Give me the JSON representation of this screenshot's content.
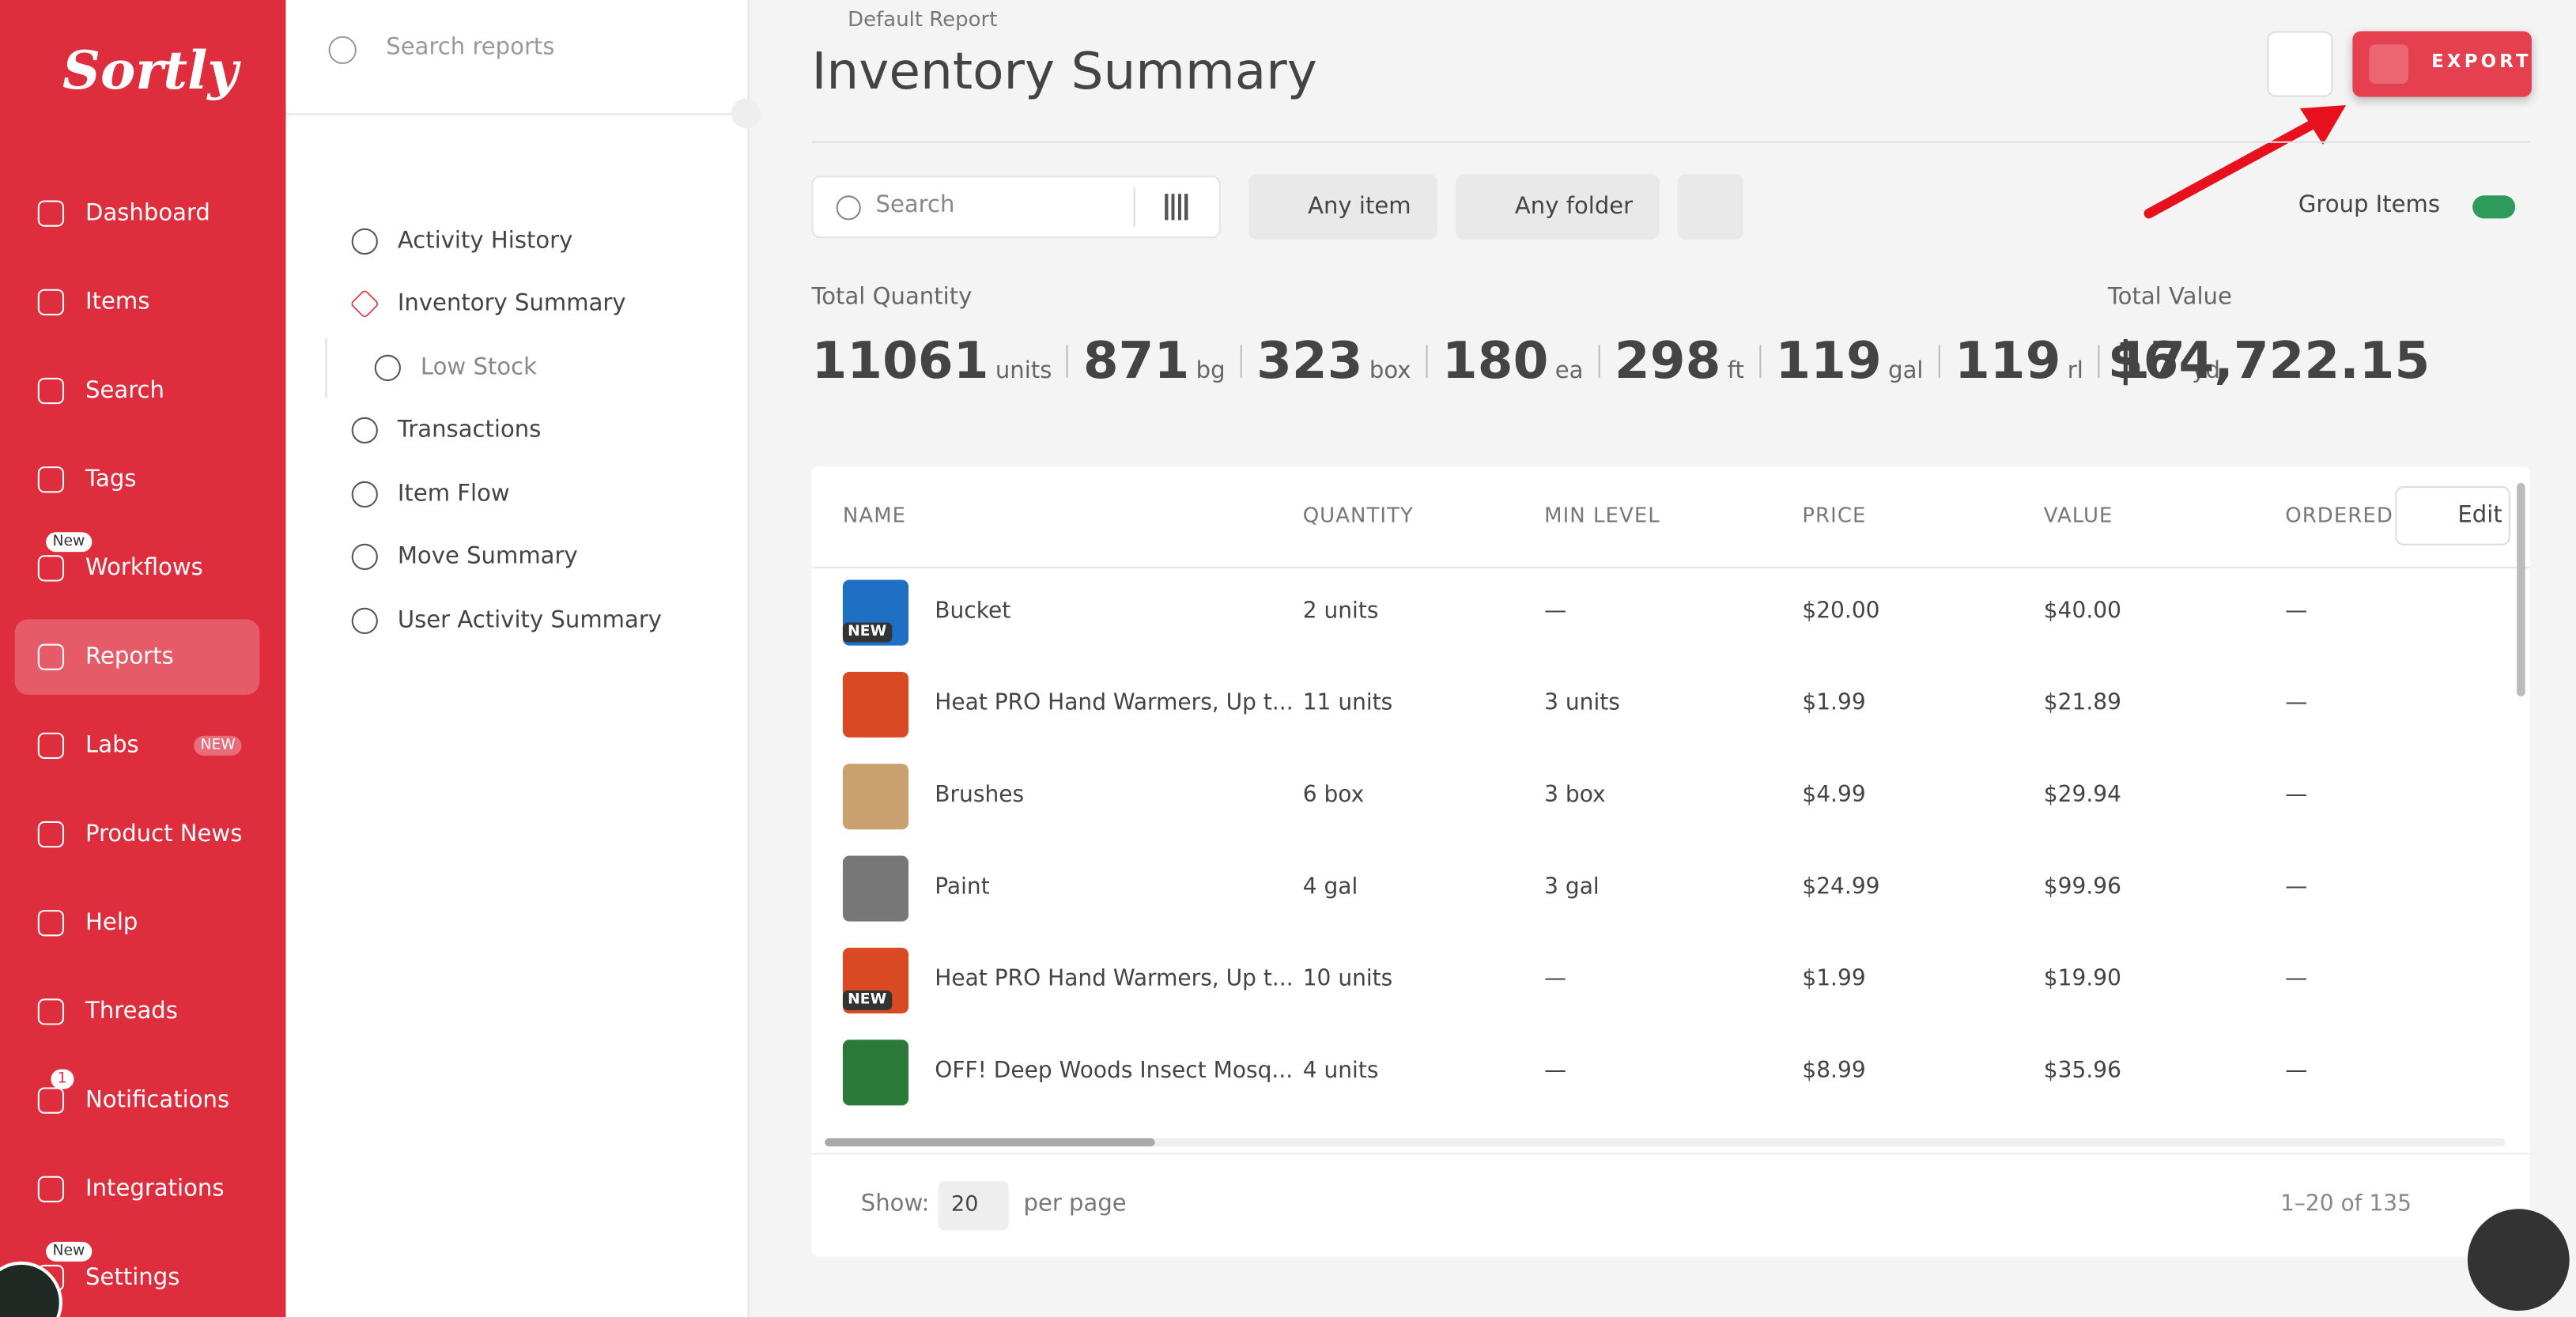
{
  "brand": "Sortly",
  "nav": [
    {
      "label": "Dashboard"
    },
    {
      "label": "Items"
    },
    {
      "label": "Search"
    },
    {
      "label": "Tags"
    },
    {
      "label": "Workflows",
      "badge": "New"
    },
    {
      "label": "Reports"
    },
    {
      "label": "Labs",
      "badge": "NEW"
    },
    {
      "label": "Product News"
    },
    {
      "label": "Help"
    },
    {
      "label": "Threads"
    },
    {
      "label": "Notifications",
      "badge": "1"
    },
    {
      "label": "Integrations"
    },
    {
      "label": "Settings",
      "badge": "New"
    }
  ],
  "report_search": "Search reports",
  "report_menu": [
    "Activity History",
    "Inventory Summary",
    "Low Stock",
    "Transactions",
    "Item Flow",
    "Move Summary",
    "User Activity Summary"
  ],
  "header": {
    "breadcrumb": "Default Report",
    "title": "Inventory Summary",
    "export": "EXPORT"
  },
  "filters": {
    "search": "Search",
    "item": "Any item",
    "folder": "Any folder",
    "group_items": "Group Items"
  },
  "totals": {
    "quantity_label": "Total Quantity",
    "quantities": [
      {
        "value": "11061",
        "unit": "units"
      },
      {
        "value": "871",
        "unit": "bg"
      },
      {
        "value": "323",
        "unit": "box"
      },
      {
        "value": "180",
        "unit": "ea"
      },
      {
        "value": "298",
        "unit": "ft"
      },
      {
        "value": "119",
        "unit": "gal"
      },
      {
        "value": "119",
        "unit": "rl"
      },
      {
        "value": "17",
        "unit": "yd"
      }
    ],
    "value_label": "Total Value",
    "value": "$64,722.15"
  },
  "table": {
    "columns": [
      "NAME",
      "QUANTITY",
      "MIN LEVEL",
      "PRICE",
      "VALUE",
      "ORDERED"
    ],
    "edit": "Edit",
    "rows": [
      {
        "name": "Bucket",
        "quantity": "2 units",
        "min": "—",
        "price": "$20.00",
        "value": "$40.00",
        "ordered": "—",
        "badge": "NEW"
      },
      {
        "name": "Heat PRO Hand Warmers, Up t...",
        "quantity": "11 units",
        "min": "3 units",
        "price": "$1.99",
        "value": "$21.89",
        "ordered": "—"
      },
      {
        "name": "Brushes",
        "quantity": "6 box",
        "min": "3 box",
        "price": "$4.99",
        "value": "$29.94",
        "ordered": "—"
      },
      {
        "name": "Paint",
        "quantity": "4 gal",
        "min": "3 gal",
        "price": "$24.99",
        "value": "$99.96",
        "ordered": "—"
      },
      {
        "name": "Heat PRO Hand Warmers, Up t...",
        "quantity": "10 units",
        "min": "—",
        "price": "$1.99",
        "value": "$19.90",
        "ordered": "—",
        "badge": "NEW"
      },
      {
        "name": "OFF! Deep Woods Insect Mosq...",
        "quantity": "4 units",
        "min": "—",
        "price": "$8.99",
        "value": "$35.96",
        "ordered": "—"
      }
    ]
  },
  "pagination": {
    "show": "Show:",
    "per_page_value": "20",
    "per_page": "per page",
    "range": "1–20 of 135"
  }
}
